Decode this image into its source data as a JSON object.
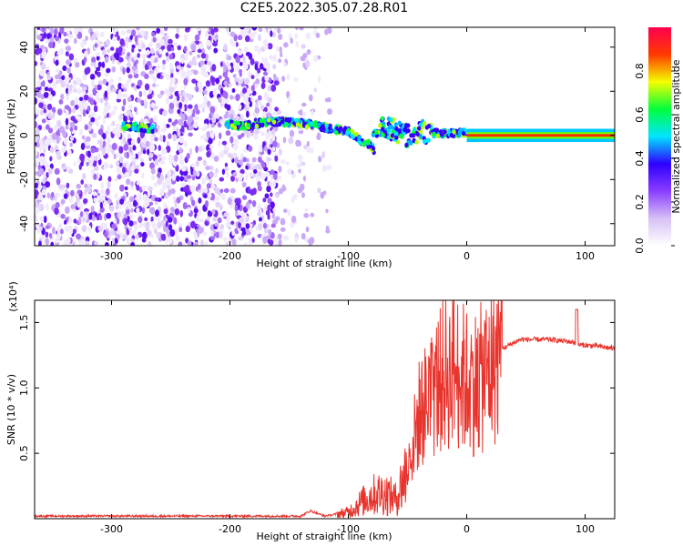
{
  "title": "C2E5.2022.305.07.28.R01",
  "chart_data": [
    {
      "type": "heatmap",
      "name": "spectrogram",
      "xlabel": "Height of straight line (km)",
      "ylabel": "Frequency (Hz)",
      "xlim": [
        -365,
        125
      ],
      "ylim": [
        -50,
        49
      ],
      "xticks": [
        -300,
        -200,
        -100,
        0,
        100
      ],
      "xtick_labels": [
        "-300",
        "-200",
        "-100",
        "0",
        "100"
      ],
      "yticks": [
        -40,
        -20,
        0,
        20,
        40
      ],
      "ytick_labels": [
        "-40",
        "-20",
        "0",
        "20",
        "40"
      ],
      "signal_track": [
        {
          "x": -290,
          "y": 4
        },
        {
          "x": -280,
          "y": 4
        },
        {
          "x": -270,
          "y": 3
        },
        {
          "x": -200,
          "y": 5
        },
        {
          "x": -190,
          "y": 4
        },
        {
          "x": -170,
          "y": 6
        },
        {
          "x": -150,
          "y": 6
        },
        {
          "x": -130,
          "y": 5
        },
        {
          "x": -115,
          "y": 3
        },
        {
          "x": -100,
          "y": 2
        },
        {
          "x": -90,
          "y": -2
        },
        {
          "x": -80,
          "y": -5
        },
        {
          "x": -70,
          "y": 5
        },
        {
          "x": -60,
          "y": 2
        },
        {
          "x": -50,
          "y": 0
        },
        {
          "x": -40,
          "y": 2
        },
        {
          "x": -30,
          "y": 1
        },
        {
          "x": -20,
          "y": 1
        },
        {
          "x": -10,
          "y": 1
        },
        {
          "x": 0,
          "y": 1
        },
        {
          "x": 20,
          "y": 0
        },
        {
          "x": 60,
          "y": 0
        },
        {
          "x": 100,
          "y": 0
        },
        {
          "x": 125,
          "y": 0
        }
      ],
      "colorbar": {
        "label": "Normalized spectral amplitude",
        "range": [
          0,
          1
        ],
        "ticks": [
          0.0,
          0.2,
          0.4,
          0.6,
          0.8
        ],
        "tick_labels": [
          "0.0",
          "0.2",
          "0.4",
          "0.6",
          "0.8"
        ],
        "colors": [
          "#ffffff",
          "#d6c0f5",
          "#8a3dff",
          "#2e00ff",
          "#00e5ff",
          "#00ff3c",
          "#f4ff00",
          "#ff3a00",
          "#ff0050"
        ]
      }
    },
    {
      "type": "line",
      "name": "snr",
      "xlabel": "Height of straight line (km)",
      "ylabel": "SNR (10 * v/v)",
      "multiplier": "(x10⁴)",
      "xlim": [
        -365,
        125
      ],
      "ylim": [
        0,
        1.67
      ],
      "xticks": [
        -300,
        -200,
        -100,
        0,
        100
      ],
      "xtick_labels": [
        "-300",
        "-200",
        "-100",
        "0",
        "100"
      ],
      "yticks": [
        0.5,
        1.0,
        1.5
      ],
      "ytick_labels": [
        "0.5",
        "1.0",
        "1.5"
      ],
      "color": "#e8342d",
      "series": [
        {
          "x": -365,
          "y": 0.02
        },
        {
          "x": -200,
          "y": 0.02
        },
        {
          "x": -140,
          "y": 0.02
        },
        {
          "x": -132,
          "y": 0.06
        },
        {
          "x": -120,
          "y": 0.02
        },
        {
          "x": -100,
          "y": 0.05
        },
        {
          "x": -90,
          "y": 0.12
        },
        {
          "x": -80,
          "y": 0.18
        },
        {
          "x": -70,
          "y": 0.2
        },
        {
          "x": -60,
          "y": 0.15
        },
        {
          "x": -50,
          "y": 0.38
        },
        {
          "x": -40,
          "y": 0.8
        },
        {
          "x": -30,
          "y": 0.95
        },
        {
          "x": -20,
          "y": 1.1
        },
        {
          "x": -10,
          "y": 1.15
        },
        {
          "x": 0,
          "y": 1.05
        },
        {
          "x": 10,
          "y": 1.05
        },
        {
          "x": 20,
          "y": 1.15
        },
        {
          "x": 30,
          "y": 1.3
        },
        {
          "x": 45,
          "y": 1.37
        },
        {
          "x": 70,
          "y": 1.37
        },
        {
          "x": 90,
          "y": 1.35
        },
        {
          "x": 95,
          "y": 1.33
        },
        {
          "x": 110,
          "y": 1.32
        },
        {
          "x": 125,
          "y": 1.3
        }
      ]
    }
  ]
}
